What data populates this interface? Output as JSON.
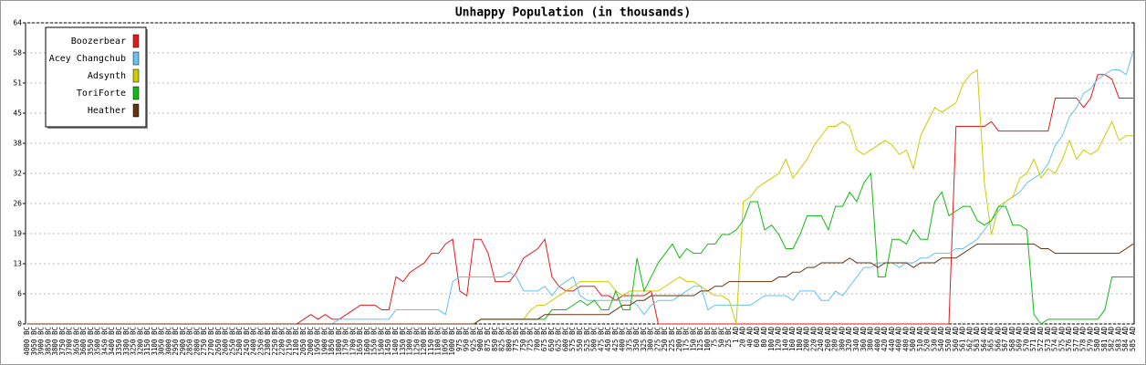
{
  "chart_data": {
    "type": "line",
    "title": "Unhappy Population (in thousands)",
    "categories": [
      "4000 BC",
      "3950 BC",
      "3900 BC",
      "3850 BC",
      "3800 BC",
      "3750 BC",
      "3700 BC",
      "3650 BC",
      "3600 BC",
      "3550 BC",
      "3500 BC",
      "3450 BC",
      "3400 BC",
      "3350 BC",
      "3300 BC",
      "3250 BC",
      "3200 BC",
      "3150 BC",
      "3100 BC",
      "3050 BC",
      "3000 BC",
      "2950 BC",
      "2900 BC",
      "2850 BC",
      "2800 BC",
      "2750 BC",
      "2700 BC",
      "2650 BC",
      "2600 BC",
      "2550 BC",
      "2500 BC",
      "2450 BC",
      "2400 BC",
      "2350 BC",
      "2300 BC",
      "2250 BC",
      "2200 BC",
      "2150 BC",
      "2100 BC",
      "2050 BC",
      "2000 BC",
      "1950 BC",
      "1900 BC",
      "1850 BC",
      "1800 BC",
      "1750 BC",
      "1700 BC",
      "1650 BC",
      "1600 BC",
      "1550 BC",
      "1500 BC",
      "1450 BC",
      "1400 BC",
      "1350 BC",
      "1300 BC",
      "1250 BC",
      "1200 BC",
      "1150 BC",
      "1100 BC",
      "1050 BC",
      "1000 BC",
      "975 BC",
      "950 BC",
      "925 BC",
      "900 BC",
      "875 BC",
      "850 BC",
      "825 BC",
      "800 BC",
      "775 BC",
      "750 BC",
      "725 BC",
      "700 BC",
      "675 BC",
      "650 BC",
      "625 BC",
      "600 BC",
      "575 BC",
      "550 BC",
      "525 BC",
      "500 BC",
      "475 BC",
      "450 BC",
      "425 BC",
      "400 BC",
      "375 BC",
      "350 BC",
      "325 BC",
      "300 BC",
      "275 BC",
      "250 BC",
      "225 BC",
      "200 BC",
      "175 BC",
      "150 BC",
      "125 BC",
      "100 BC",
      "75 BC",
      "50 BC",
      "25 BC",
      "1 AD",
      "20 AD",
      "40 AD",
      "60 AD",
      "80 AD",
      "100 AD",
      "120 AD",
      "140 AD",
      "160 AD",
      "180 AD",
      "200 AD",
      "220 AD",
      "240 AD",
      "260 AD",
      "280 AD",
      "300 AD",
      "320 AD",
      "340 AD",
      "360 AD",
      "380 AD",
      "400 AD",
      "420 AD",
      "440 AD",
      "460 AD",
      "480 AD",
      "500 AD",
      "510 AD",
      "520 AD",
      "530 AD",
      "540 AD",
      "550 AD",
      "560 AD",
      "561 AD",
      "562 AD",
      "563 AD",
      "564 AD",
      "565 AD",
      "566 AD",
      "567 AD",
      "568 AD",
      "569 AD",
      "570 AD",
      "571 AD",
      "572 AD",
      "573 AD",
      "574 AD",
      "575 AD",
      "576 AD",
      "577 AD",
      "578 AD",
      "579 AD",
      "580 AD",
      "581 AD",
      "582 AD",
      "583 AD",
      "584 AD",
      "585 AD"
    ],
    "series": [
      {
        "name": "Boozerbear",
        "color": "#e31a1c",
        "values": [
          0,
          0,
          0,
          0,
          0,
          0,
          0,
          0,
          0,
          0,
          0,
          0,
          0,
          0,
          0,
          0,
          0,
          0,
          0,
          0,
          0,
          0,
          0,
          0,
          0,
          0,
          0,
          0,
          0,
          0,
          0,
          0,
          0,
          0,
          0,
          0,
          0,
          0,
          0,
          1,
          2,
          1,
          2,
          1,
          1,
          2,
          3,
          4,
          4,
          4,
          3,
          3,
          10,
          9,
          11,
          12,
          13,
          15,
          15,
          17,
          18,
          7,
          6,
          18,
          18,
          15,
          9,
          9,
          9,
          11,
          14,
          15,
          16,
          18,
          10,
          8,
          7,
          7,
          8,
          8,
          8,
          6,
          6,
          5,
          6,
          6,
          6,
          6,
          7,
          0,
          0,
          0,
          0,
          0,
          0,
          0,
          0,
          0,
          0,
          0,
          0,
          0,
          0,
          0,
          0,
          0,
          0,
          0,
          0,
          0,
          0,
          0,
          0,
          0,
          0,
          0,
          0,
          0,
          0,
          0,
          0,
          0,
          0,
          0,
          0,
          0,
          0,
          0,
          0,
          0,
          0,
          42,
          42,
          42,
          42,
          42,
          43,
          41,
          41,
          41,
          41,
          41,
          41,
          41,
          41,
          48,
          48,
          48,
          48,
          46,
          48,
          53,
          53,
          52,
          48,
          48,
          48
        ]
      },
      {
        "name": "Acey Changchub",
        "color": "#66c2f0",
        "values": [
          0,
          0,
          0,
          0,
          0,
          0,
          0,
          0,
          0,
          0,
          0,
          0,
          0,
          0,
          0,
          0,
          0,
          0,
          0,
          0,
          0,
          0,
          0,
          0,
          0,
          0,
          0,
          0,
          0,
          0,
          0,
          0,
          0,
          0,
          0,
          0,
          0,
          0,
          0,
          0,
          0,
          0,
          0,
          0,
          1,
          1,
          1,
          1,
          1,
          1,
          1,
          1,
          3,
          3,
          3,
          3,
          3,
          3,
          3,
          2,
          9,
          10,
          10,
          10,
          10,
          10,
          10,
          10,
          11,
          10,
          7,
          7,
          7,
          8,
          6,
          8,
          9,
          10,
          6,
          5,
          5,
          5,
          5,
          5,
          5,
          5,
          4,
          2,
          4,
          5,
          5,
          5,
          6,
          7,
          8,
          8,
          3,
          4,
          4,
          4,
          4,
          4,
          4,
          5,
          6,
          6,
          6,
          6,
          5,
          7,
          7,
          7,
          5,
          5,
          7,
          6,
          8,
          10,
          12,
          12,
          13,
          13,
          13,
          12,
          13,
          13,
          14,
          14,
          15,
          15,
          15,
          16,
          16,
          17,
          18,
          20,
          22,
          24,
          26,
          27,
          28,
          30,
          31,
          32,
          34,
          38,
          40,
          44,
          46,
          49,
          50,
          52,
          53,
          54,
          54,
          53,
          58
        ]
      },
      {
        "name": "Adsynth",
        "color": "#cccc00",
        "values": [
          0,
          0,
          0,
          0,
          0,
          0,
          0,
          0,
          0,
          0,
          0,
          0,
          0,
          0,
          0,
          0,
          0,
          0,
          0,
          0,
          0,
          0,
          0,
          0,
          0,
          0,
          0,
          0,
          0,
          0,
          0,
          0,
          0,
          0,
          0,
          0,
          0,
          0,
          0,
          0,
          0,
          0,
          0,
          0,
          0,
          0,
          0,
          0,
          0,
          0,
          0,
          0,
          0,
          0,
          0,
          0,
          0,
          0,
          0,
          0,
          0,
          0,
          0,
          0,
          1,
          1,
          1,
          1,
          1,
          1,
          1,
          3,
          4,
          4,
          5,
          6,
          7,
          8,
          9,
          9,
          9,
          9,
          9,
          7,
          6,
          7,
          7,
          7,
          7,
          7,
          8,
          9,
          10,
          9,
          9,
          8,
          7,
          6,
          6,
          5,
          0,
          26,
          27,
          29,
          30,
          31,
          32,
          35,
          31,
          33,
          35,
          38,
          40,
          42,
          42,
          43,
          42,
          37,
          36,
          37,
          38,
          39,
          38,
          36,
          37,
          33,
          40,
          43,
          46,
          45,
          46,
          47,
          51,
          53,
          54,
          30,
          19,
          25,
          26,
          27,
          31,
          32,
          35,
          31,
          33,
          32,
          35,
          39,
          35,
          37,
          36,
          37,
          40,
          43,
          39,
          40,
          40
        ]
      },
      {
        "name": "ToriForte",
        "color": "#11bb11",
        "values": [
          0,
          0,
          0,
          0,
          0,
          0,
          0,
          0,
          0,
          0,
          0,
          0,
          0,
          0,
          0,
          0,
          0,
          0,
          0,
          0,
          0,
          0,
          0,
          0,
          0,
          0,
          0,
          0,
          0,
          0,
          0,
          0,
          0,
          0,
          0,
          0,
          0,
          0,
          0,
          0,
          0,
          0,
          0,
          0,
          0,
          0,
          0,
          0,
          0,
          0,
          0,
          0,
          0,
          0,
          0,
          0,
          0,
          0,
          0,
          0,
          0,
          0,
          0,
          0,
          1,
          1,
          1,
          1,
          1,
          1,
          1,
          1,
          1,
          1,
          3,
          3,
          3,
          4,
          5,
          4,
          5,
          3,
          3,
          7,
          3,
          3,
          14,
          7,
          10,
          13,
          15,
          17,
          14,
          16,
          15,
          15,
          17,
          17,
          19,
          19,
          20,
          22,
          26,
          26,
          20,
          21,
          19,
          16,
          16,
          19,
          23,
          23,
          23,
          20,
          25,
          25,
          28,
          26,
          30,
          32,
          10,
          10,
          18,
          18,
          17,
          20,
          18,
          18,
          26,
          28,
          23,
          24,
          25,
          25,
          22,
          21,
          22,
          25,
          25,
          21,
          21,
          20,
          2,
          0,
          1,
          1,
          1,
          1,
          1,
          1,
          1,
          1,
          3,
          10,
          10,
          10,
          10
        ]
      },
      {
        "name": "Heather",
        "color": "#663311",
        "values": [
          0,
          0,
          0,
          0,
          0,
          0,
          0,
          0,
          0,
          0,
          0,
          0,
          0,
          0,
          0,
          0,
          0,
          0,
          0,
          0,
          0,
          0,
          0,
          0,
          0,
          0,
          0,
          0,
          0,
          0,
          0,
          0,
          0,
          0,
          0,
          0,
          0,
          0,
          0,
          0,
          0,
          0,
          0,
          0,
          0,
          0,
          0,
          0,
          0,
          0,
          0,
          0,
          0,
          0,
          0,
          0,
          0,
          0,
          0,
          0,
          0,
          0,
          0,
          0,
          1,
          1,
          1,
          1,
          1,
          1,
          1,
          1,
          1,
          2,
          2,
          2,
          2,
          2,
          2,
          2,
          2,
          2,
          2,
          3,
          4,
          4,
          5,
          5,
          6,
          6,
          6,
          6,
          6,
          6,
          6,
          7,
          7,
          8,
          8,
          9,
          9,
          9,
          9,
          9,
          9,
          9,
          10,
          10,
          11,
          11,
          12,
          12,
          13,
          13,
          13,
          13,
          14,
          13,
          13,
          13,
          12,
          13,
          13,
          13,
          13,
          12,
          13,
          13,
          13,
          14,
          14,
          14,
          15,
          16,
          17,
          17,
          17,
          17,
          17,
          17,
          17,
          17,
          17,
          16,
          16,
          15,
          15,
          15,
          15,
          15,
          15,
          15,
          15,
          15,
          15,
          16,
          17
        ]
      }
    ],
    "ylim": [
      0,
      64
    ],
    "yticks": [
      0,
      {
        "value": 6.4,
        "label": "6"
      },
      {
        "value": 12.8,
        "label": "13"
      },
      {
        "value": 19.2,
        "label": "19"
      },
      {
        "value": 25.6,
        "label": "26"
      },
      32,
      {
        "value": 38.4,
        "label": "38"
      },
      {
        "value": 44.8,
        "label": "45"
      },
      {
        "value": 51.2,
        "label": "51"
      },
      {
        "value": 57.6,
        "label": "58"
      },
      64
    ],
    "grid": true,
    "legend": "top-left"
  }
}
